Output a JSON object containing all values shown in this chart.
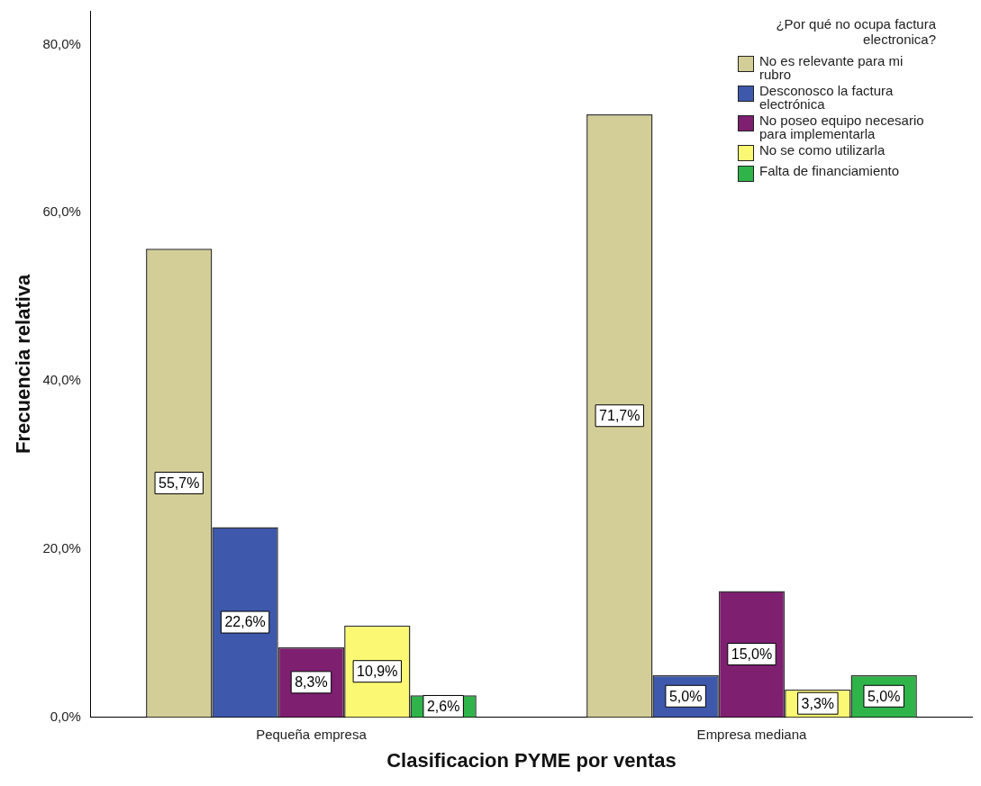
{
  "chart_data": {
    "type": "bar",
    "xlabel": "Clasificacion PYME por ventas",
    "ylabel": "Frecuencia relativa",
    "legend_title": "¿Por qué no ocupa factura electronica?",
    "legend": "top right",
    "grid": false,
    "categories": [
      "Pequeña empresa",
      "Empresa mediana"
    ],
    "ylim": [
      0,
      84
    ],
    "yticks": [
      {
        "value": 0,
        "label": "0,0%"
      },
      {
        "value": 20,
        "label": "20,0%"
      },
      {
        "value": 40,
        "label": "40,0%"
      },
      {
        "value": 60,
        "label": "60,0%"
      },
      {
        "value": 80,
        "label": "80,0%"
      }
    ],
    "series": [
      {
        "name": "No es relevante para mi rubro",
        "color": "#d3ce97",
        "values": [
          55.7,
          71.7
        ],
        "value_labels": [
          "55,7%",
          "71,7%"
        ]
      },
      {
        "name": "Desconosco la factura electrónica",
        "color": "#3e58ac",
        "values": [
          22.6,
          5.0
        ],
        "value_labels": [
          "22,6%",
          "5,0%"
        ]
      },
      {
        "name": "No poseo equipo necesario para implementarla",
        "color": "#7e1f70",
        "values": [
          8.3,
          15.0
        ],
        "value_labels": [
          "8,3%",
          "15,0%"
        ]
      },
      {
        "name": "No se como utilizarla",
        "color": "#fbf873",
        "values": [
          10.9,
          3.3
        ],
        "value_labels": [
          "10,9%",
          "3,3%"
        ]
      },
      {
        "name": "Falta de financiamiento",
        "color": "#2fb44a",
        "values": [
          2.6,
          5.0
        ],
        "value_labels": [
          "2,6%",
          "5,0%"
        ]
      }
    ]
  }
}
